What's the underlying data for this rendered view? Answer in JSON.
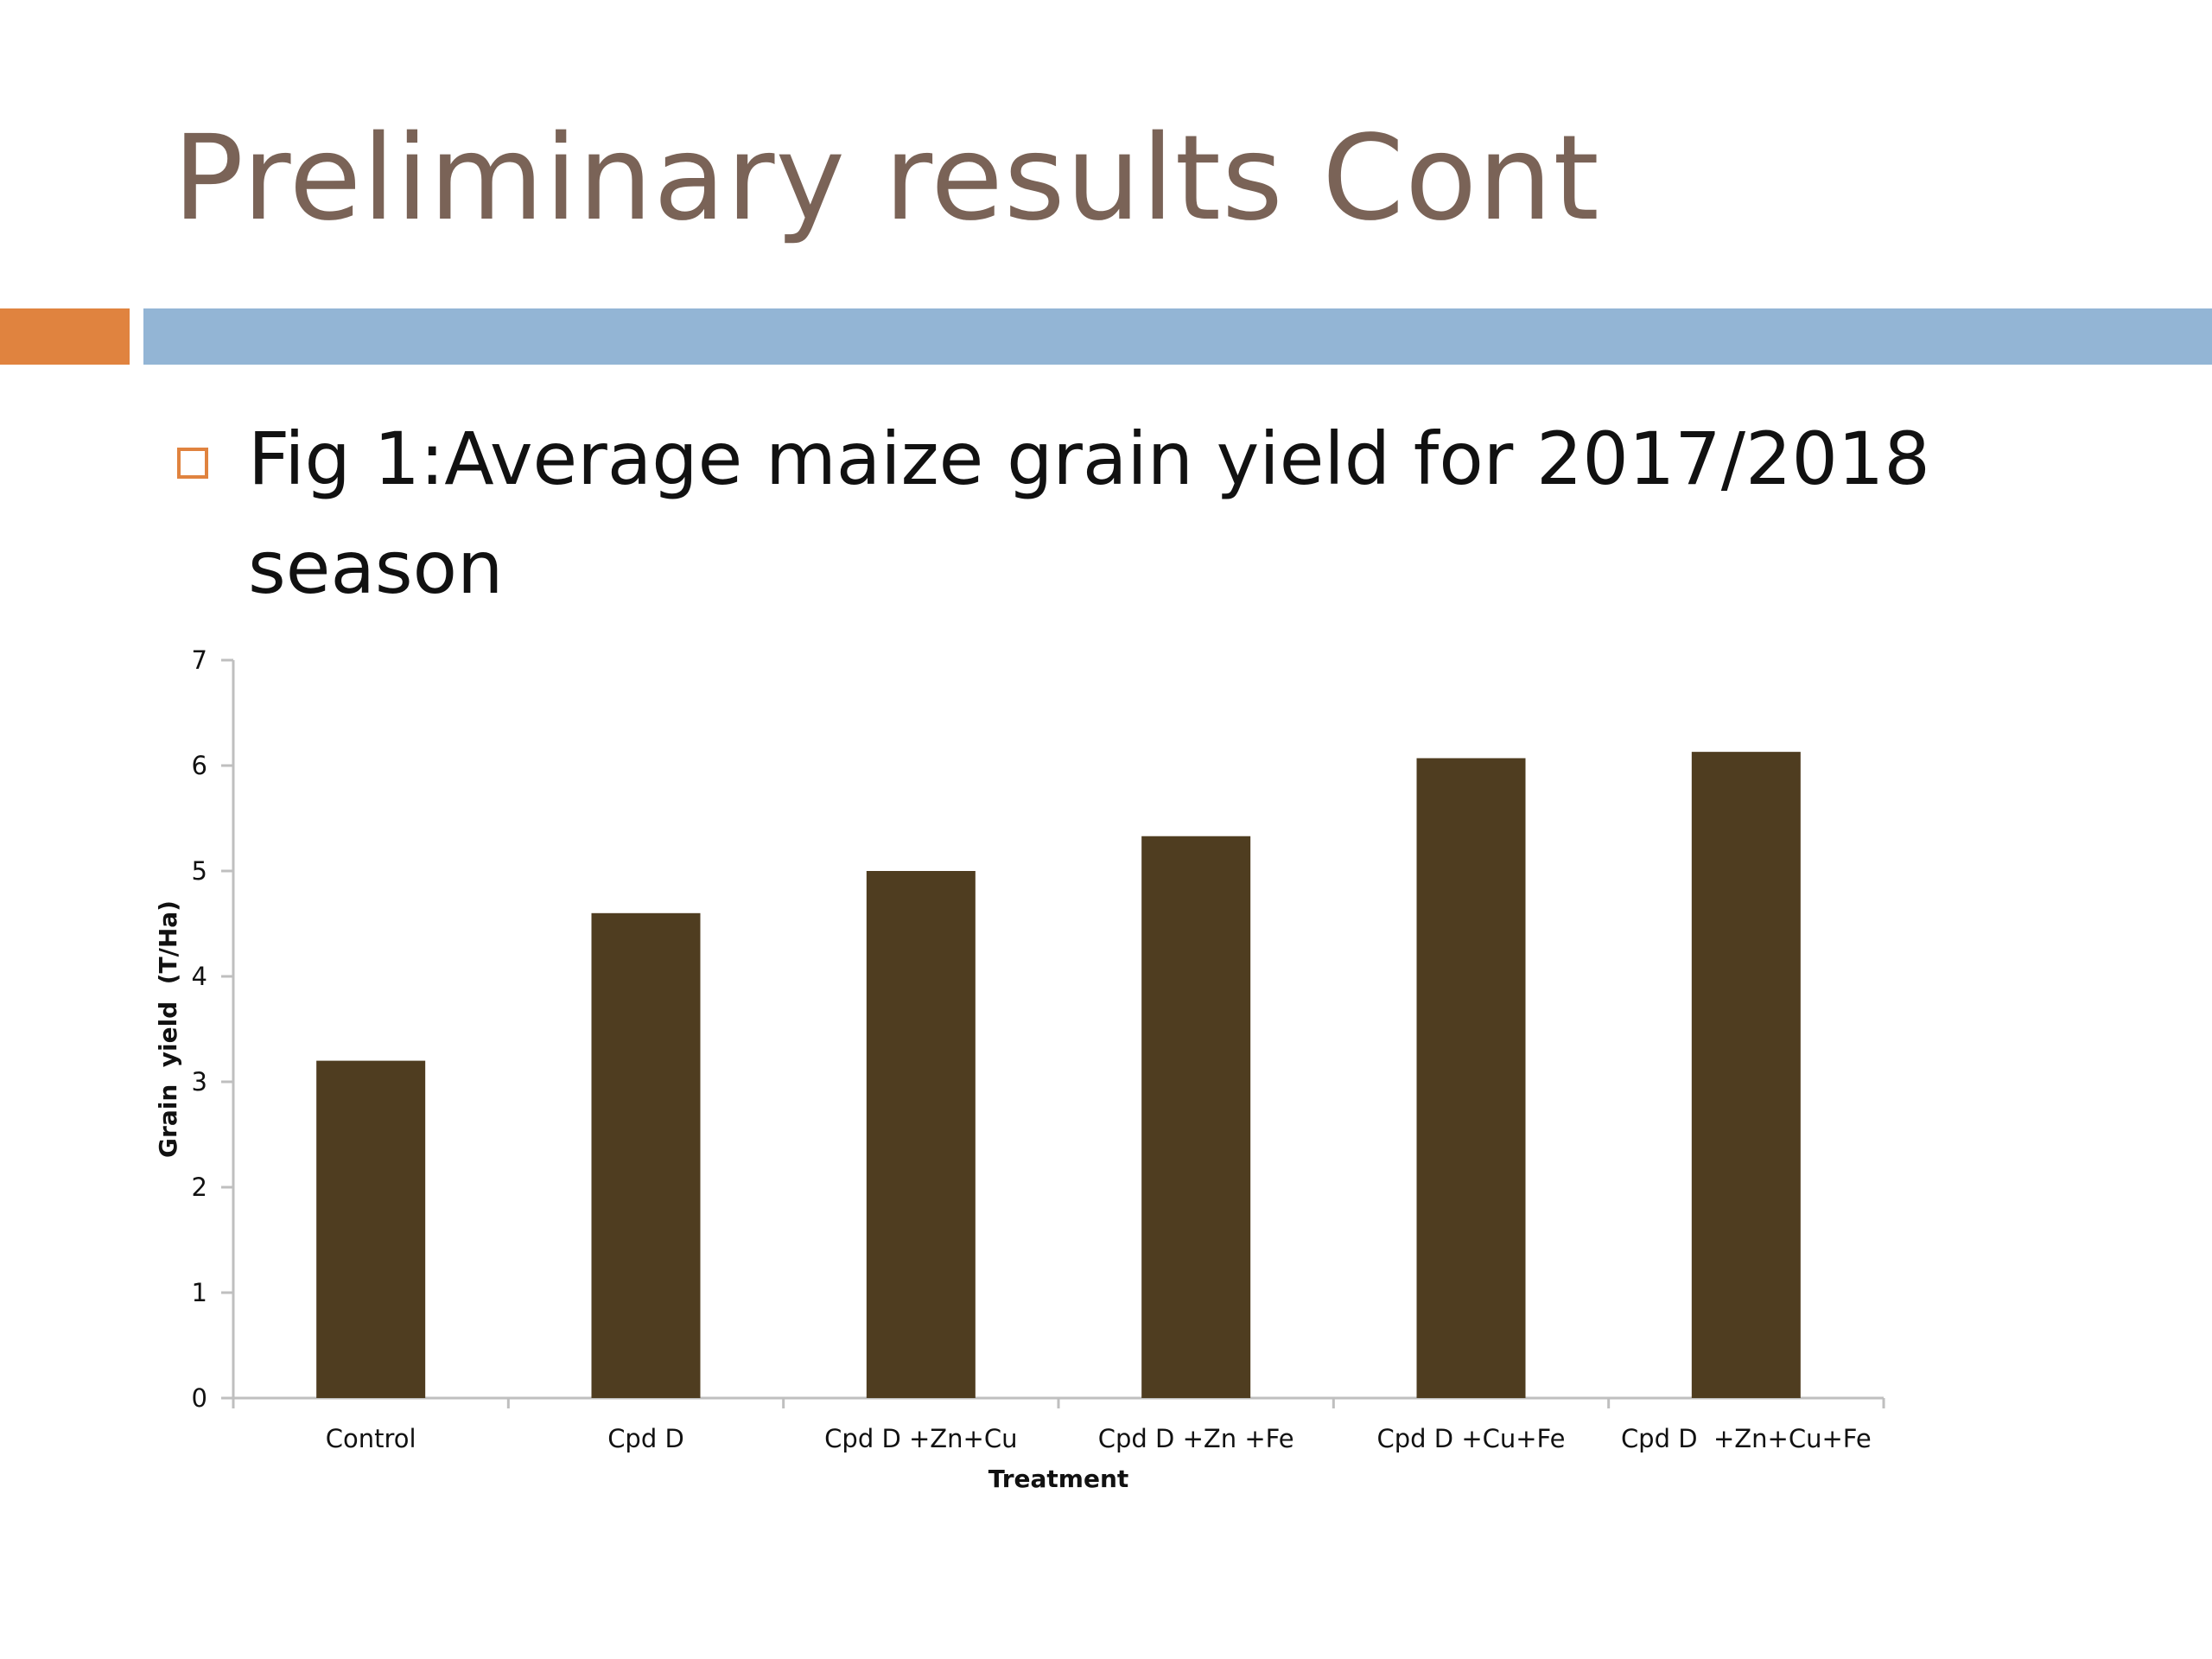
{
  "slide": {
    "title": "Preliminary results Cont",
    "bullet": "Fig 1:Average maize grain yield for 2017/2018 season"
  },
  "colors": {
    "title": "#7a6357",
    "accent_orange": "#e0833f",
    "accent_blue": "#93b5d5",
    "bar": "#4f3d20"
  },
  "icons": {
    "bullet": "hollow-square-bullet"
  },
  "chart_data": {
    "type": "bar",
    "categories": [
      "Control",
      "Cpd D",
      "Cpd D +Zn+Cu",
      "Cpd D +Zn +Fe",
      "Cpd D +Cu+Fe",
      "Cpd D  +Zn+Cu+Fe"
    ],
    "values": [
      3.2,
      4.6,
      5.0,
      5.33,
      6.07,
      6.13
    ],
    "title": "",
    "xlabel": "Treatment",
    "ylabel": "Grain  yield  (T/Ha)",
    "ylim": [
      0,
      7
    ],
    "yticks": [
      "0",
      "1",
      "2",
      "3",
      "4",
      "5",
      "6",
      "7"
    ],
    "grid": false,
    "legend": "none"
  }
}
